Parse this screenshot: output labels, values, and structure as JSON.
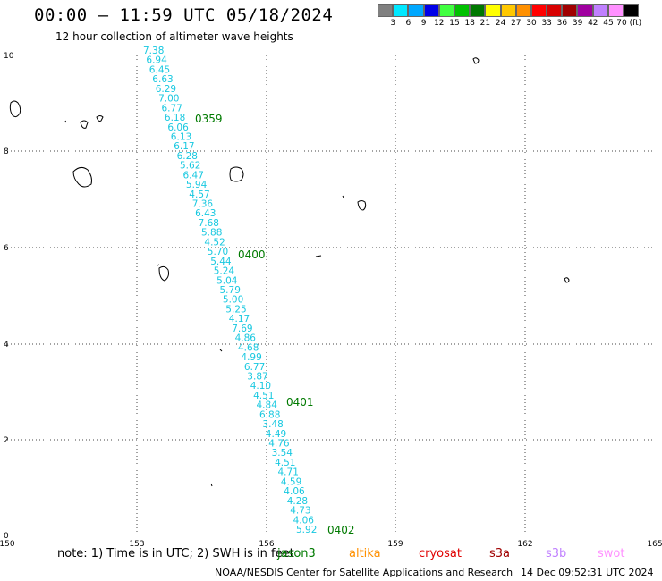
{
  "header": {
    "title": "00:00 – 11:59 UTC 05/18/2024",
    "subtitle": "12 hour collection of altimeter wave heights"
  },
  "colorbar": {
    "colors": [
      "#808080",
      "#00e8ff",
      "#00a8ff",
      "#0000e8",
      "#40ff40",
      "#00c000",
      "#007800",
      "#ffff00",
      "#ffc800",
      "#ff9000",
      "#ff0000",
      "#d80000",
      "#a00000",
      "#a000a0",
      "#c080ff",
      "#ff90ff",
      "#000000"
    ],
    "labels": [
      "3",
      "6",
      "9",
      "12",
      "15",
      "18",
      "21",
      "24",
      "27",
      "30",
      "33",
      "36",
      "39",
      "42",
      "45",
      "70 (ft)"
    ]
  },
  "axes": {
    "x_ticks": [
      "150",
      "153",
      "156",
      "159",
      "162",
      "165"
    ],
    "y_ticks": [
      "0",
      "2",
      "4",
      "6",
      "8",
      "10"
    ]
  },
  "track": {
    "value_color": "#18c8e0",
    "time_color": "#007a00",
    "values": [
      "7.38",
      "6.94",
      "6.45",
      "6.63",
      "6.29",
      "7.00",
      "6.77",
      "6.18",
      "6.06",
      "6.13",
      "6.17",
      "6.28",
      "5.62",
      "6.47",
      "5.94",
      "4.57",
      "7.36",
      "6.43",
      "7.68",
      "5.88",
      "4.52",
      "5.70",
      "5.44",
      "5.24",
      "5.04",
      "5.79",
      "5.00",
      "5.25",
      "4.17",
      "7.69",
      "4.86",
      "4.68",
      "4.99",
      "6.77",
      "3.87",
      "4.10",
      "4.51",
      "4.84",
      "6.88",
      "3.48",
      "4.49",
      "4.76",
      "3.54",
      "4.51",
      "4.71",
      "4.59",
      "4.06",
      "4.28",
      "4.73",
      "4.06",
      "5.92"
    ],
    "times": [
      "0359",
      "0400",
      "0401",
      "0402"
    ]
  },
  "note": {
    "text": "note:  1) Time is in UTC;  2) SWH is in feet",
    "satellites": [
      {
        "name": "jason3",
        "color": "#007a00"
      },
      {
        "name": "altika",
        "color": "#ff9000"
      },
      {
        "name": "cryosat",
        "color": "#e00000"
      },
      {
        "name": "s3a",
        "color": "#a00000"
      },
      {
        "name": "s3b",
        "color": "#c080ff"
      },
      {
        "name": "swot",
        "color": "#ff90ff"
      }
    ]
  },
  "footer": {
    "credit": "NOAA/NESDIS Center for Satellite Applications and Research",
    "generated": "14 Dec 09:52:31 UTC 2024"
  }
}
